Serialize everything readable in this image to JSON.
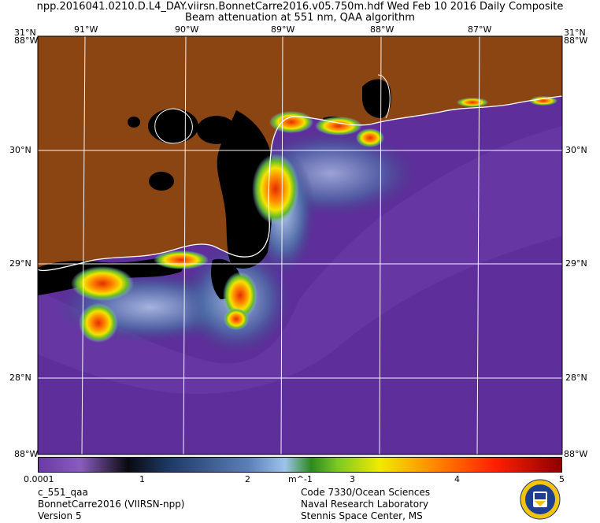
{
  "header": {
    "line1": "npp.2016041.0210.D.L4_DAY.viirsn.BonnetCarre2016.v05.750m.hdf   Wed Feb 10 2016 Daily Composite",
    "line2": "Beam attenuation at 551 nm, QAA algorithm"
  },
  "axes": {
    "lon_top": [
      "91°W",
      "90°W",
      "89°W",
      "88°W",
      "87°W"
    ],
    "lat_left": [
      "30°N",
      "29°N",
      "28°N"
    ],
    "lat_right": [
      "30°N",
      "29°N",
      "28°N"
    ],
    "corner_top_left": "31°N",
    "corner_top_left_sub": "88°W",
    "corner_top_right": "31°N",
    "corner_top_right_sub": "88°W",
    "corner_bottom_left": "88°W",
    "corner_bottom_right": "88°W"
  },
  "colorbar": {
    "ticks": [
      "0.0001",
      "1",
      "2",
      "3",
      "4",
      "5"
    ],
    "unit": "m^-1"
  },
  "footer": {
    "left": [
      "c_551_qaa",
      "BonnetCarre2016 (VIIRSN-npp)",
      "Version 5"
    ],
    "right": [
      "Code 7330/Ocean Sciences",
      "Naval Research Laboratory",
      "Stennis Space Center, MS"
    ]
  },
  "colors": {
    "land": "#8b4513",
    "ocean_low": "#5e2f9a",
    "no_data": "#000000",
    "high_attenuation": "#e52c00"
  }
}
